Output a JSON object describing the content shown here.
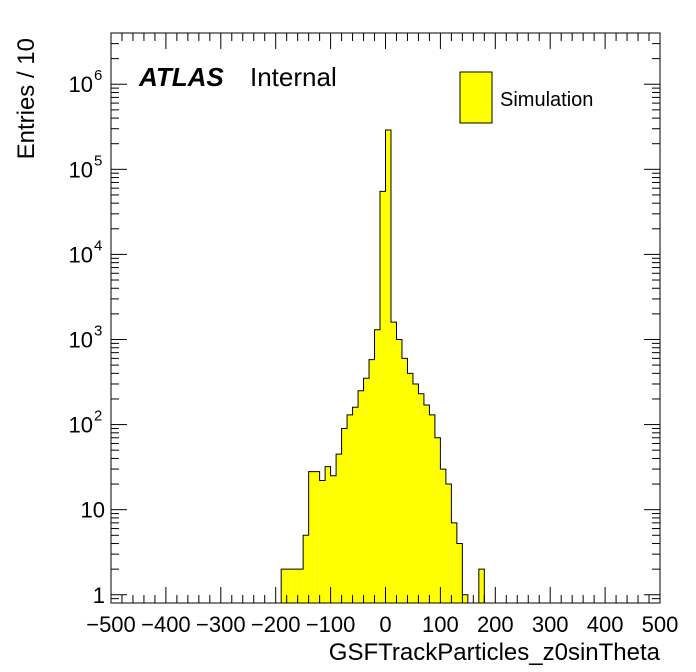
{
  "chart_data": {
    "type": "bar",
    "xlabel": "GSFTrackParticles_z0sinTheta",
    "ylabel": "Entries / 10",
    "xlim": [
      -500,
      500
    ],
    "ylim": [
      0.8,
      4000000
    ],
    "yscale": "log",
    "bin_width": 10,
    "fill_color": "#ffff00",
    "line_color": "#000000",
    "x_ticks": [
      -500,
      -400,
      -300,
      -200,
      -100,
      0,
      100,
      200,
      300,
      400,
      500
    ],
    "x_tick_labels": [
      "−500",
      "−400",
      "−300",
      "−200",
      "−100",
      "0",
      "100",
      "200",
      "300",
      "400",
      "500"
    ],
    "y_ticks": [
      {
        "value": 1,
        "base": "1",
        "exp": ""
      },
      {
        "value": 10,
        "base": "10",
        "exp": ""
      },
      {
        "value": 100,
        "base": "10",
        "exp": "2"
      },
      {
        "value": 1000,
        "base": "10",
        "exp": "3"
      },
      {
        "value": 10000,
        "base": "10",
        "exp": "4"
      },
      {
        "value": 100000,
        "base": "10",
        "exp": "5"
      },
      {
        "value": 1000000,
        "base": "10",
        "exp": "6"
      }
    ],
    "bins": [
      {
        "x": -185,
        "value": 2
      },
      {
        "x": -175,
        "value": 2
      },
      {
        "x": -165,
        "value": 2
      },
      {
        "x": -155,
        "value": 2
      },
      {
        "x": -145,
        "value": 5
      },
      {
        "x": -135,
        "value": 28
      },
      {
        "x": -125,
        "value": 28
      },
      {
        "x": -115,
        "value": 22
      },
      {
        "x": -105,
        "value": 32
      },
      {
        "x": -95,
        "value": 25
      },
      {
        "x": -85,
        "value": 45
      },
      {
        "x": -75,
        "value": 90
      },
      {
        "x": -65,
        "value": 130
      },
      {
        "x": -55,
        "value": 160
      },
      {
        "x": -45,
        "value": 250
      },
      {
        "x": -35,
        "value": 350
      },
      {
        "x": -25,
        "value": 580
      },
      {
        "x": -15,
        "value": 1300
      },
      {
        "x": -5,
        "value": 55000
      },
      {
        "x": 5,
        "value": 290000
      },
      {
        "x": 15,
        "value": 1600
      },
      {
        "x": 25,
        "value": 1000
      },
      {
        "x": 35,
        "value": 600
      },
      {
        "x": 45,
        "value": 400
      },
      {
        "x": 55,
        "value": 300
      },
      {
        "x": 65,
        "value": 230
      },
      {
        "x": 75,
        "value": 170
      },
      {
        "x": 85,
        "value": 130
      },
      {
        "x": 95,
        "value": 70
      },
      {
        "x": 105,
        "value": 30
      },
      {
        "x": 115,
        "value": 20
      },
      {
        "x": 125,
        "value": 7
      },
      {
        "x": 135,
        "value": 4
      },
      {
        "x": 145,
        "value": 1
      },
      {
        "x": 175,
        "value": 2
      }
    ],
    "legend": [
      {
        "label": "Simulation",
        "color": "#ffff00"
      }
    ],
    "legend_position": "top-right",
    "label_main": "ATLAS",
    "label_sub": "Internal",
    "grid": false
  }
}
